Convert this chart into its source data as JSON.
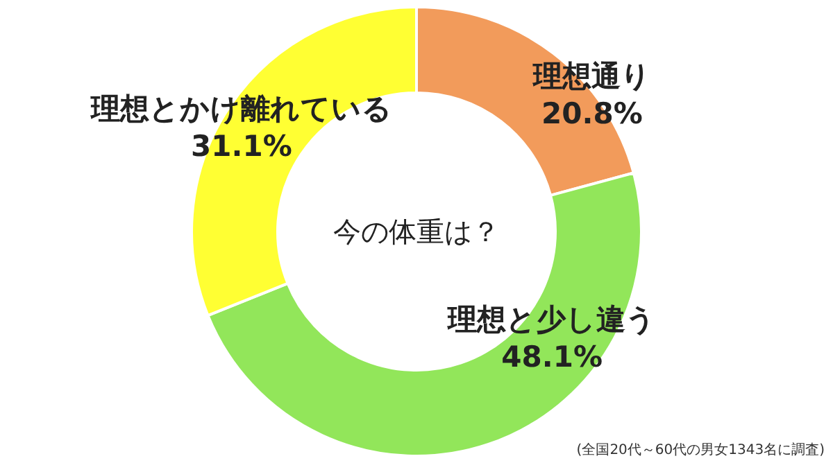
{
  "chart_data": {
    "type": "donut",
    "title": "今の体重は？",
    "categories": [
      "理想通り",
      "理想と少し違う",
      "理想とかけ離れている"
    ],
    "values": [
      20.8,
      48.1,
      31.1
    ],
    "colors": [
      "#f29b5b",
      "#92e65a",
      "#ffff33"
    ],
    "value_labels": [
      "20.8%",
      "48.1%",
      "31.1%"
    ],
    "legend": false,
    "annotations": [
      "(全国20代～60代の男女1343名に調査)"
    ]
  }
}
